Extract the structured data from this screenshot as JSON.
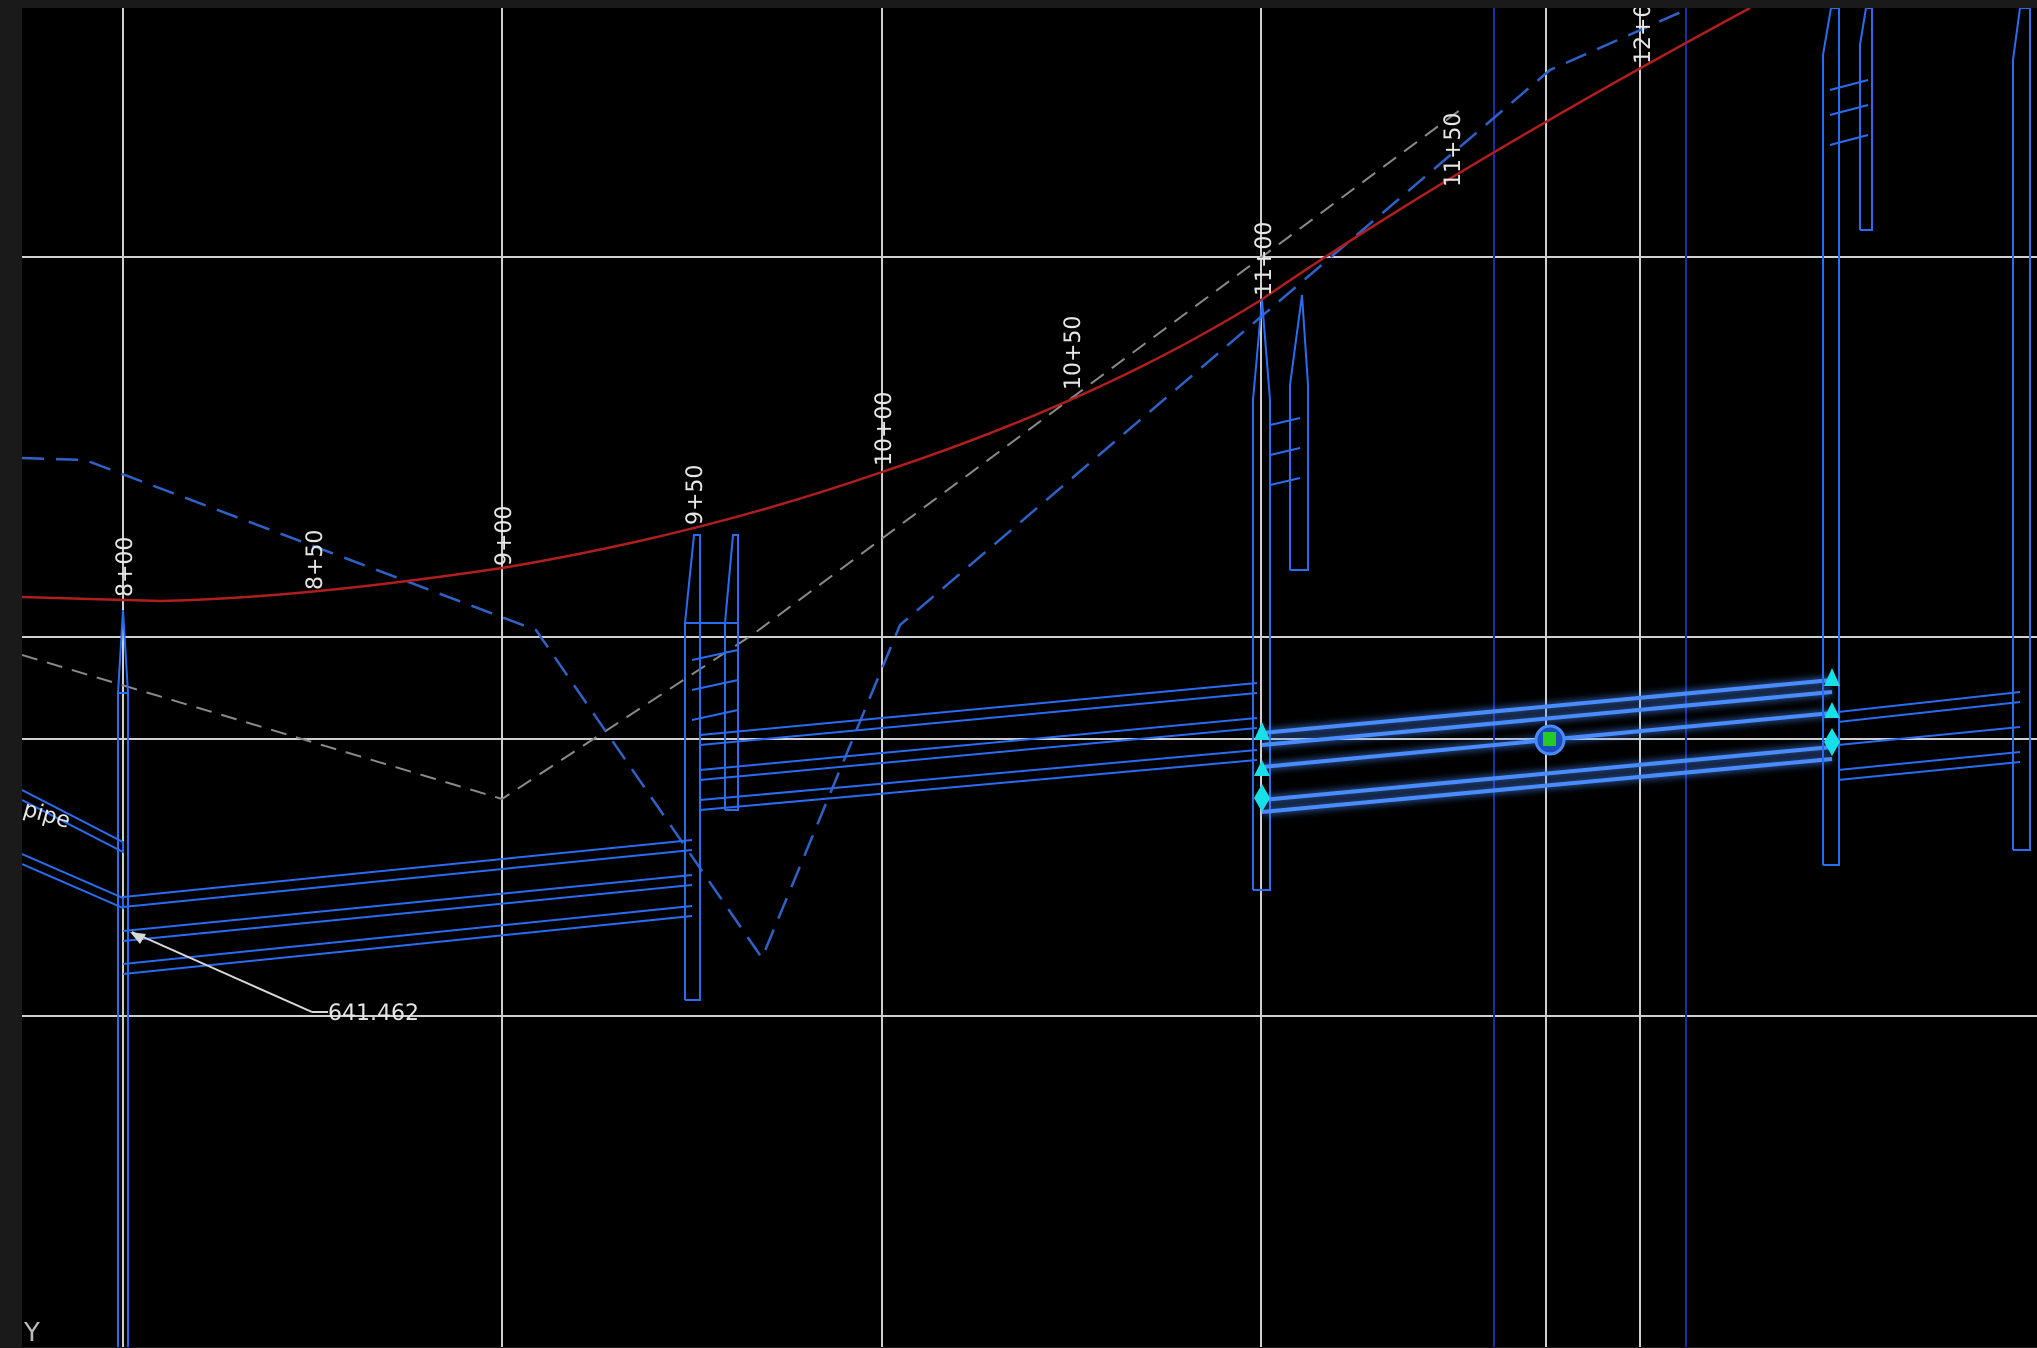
{
  "stations": [
    "8+00",
    "8+50",
    "9+00",
    "9+50",
    "10+00",
    "10+50",
    "11+00",
    "11+50",
    "12+0"
  ],
  "label_pipe": "pipe",
  "elevation_callout": "641.462",
  "ucs_label": "Y",
  "colors": {
    "background": "#000000",
    "grid": "#cfcfcf",
    "profile_existing": "#b01e1e",
    "pipe": "#2a6cf0",
    "pipe_selected": "#4a8cff",
    "grip": "#19e0e8",
    "grip_center": "#22cc22",
    "dashed_blue": "#2f62c8",
    "dashed_gray": "#8a8a8a"
  }
}
